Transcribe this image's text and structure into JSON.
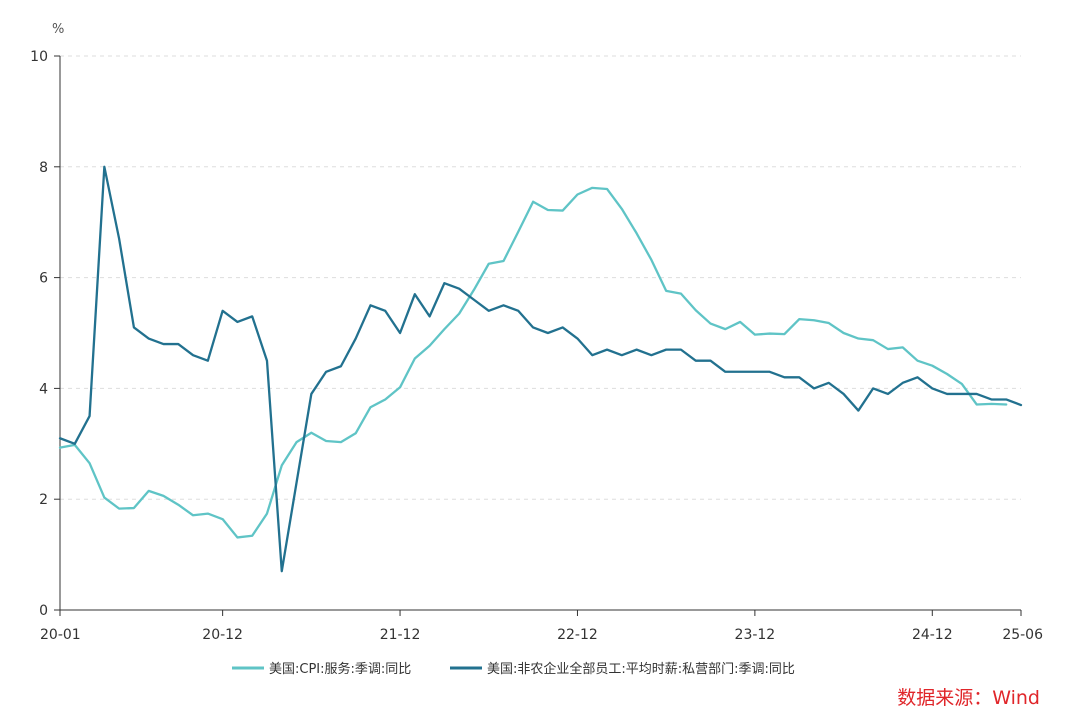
{
  "chart_data": {
    "type": "line",
    "title": "",
    "y_unit": "%",
    "xlabel": "",
    "ylabel": "",
    "ylim": [
      0,
      10
    ],
    "yticks": [
      0,
      2,
      4,
      6,
      8,
      10
    ],
    "x_tick_labels": [
      "20-01",
      "20-12",
      "21-12",
      "22-12",
      "23-12",
      "24-12",
      "25-06"
    ],
    "x_tick_index": [
      0,
      11,
      23,
      35,
      47,
      59,
      65
    ],
    "grid": "horizontal dashed",
    "legend_position": "bottom",
    "x": [
      "2020-01",
      "2020-02",
      "2020-03",
      "2020-04",
      "2020-05",
      "2020-06",
      "2020-07",
      "2020-08",
      "2020-09",
      "2020-10",
      "2020-11",
      "2020-12",
      "2021-01",
      "2021-02",
      "2021-03",
      "2021-04",
      "2021-05",
      "2021-06",
      "2021-07",
      "2021-08",
      "2021-09",
      "2021-10",
      "2021-11",
      "2021-12",
      "2022-01",
      "2022-02",
      "2022-03",
      "2022-04",
      "2022-05",
      "2022-06",
      "2022-07",
      "2022-08",
      "2022-09",
      "2022-10",
      "2022-11",
      "2022-12",
      "2023-01",
      "2023-02",
      "2023-03",
      "2023-04",
      "2023-05",
      "2023-06",
      "2023-07",
      "2023-08",
      "2023-09",
      "2023-10",
      "2023-11",
      "2023-12",
      "2024-01",
      "2024-02",
      "2024-03",
      "2024-04",
      "2024-05",
      "2024-06",
      "2024-07",
      "2024-08",
      "2024-09",
      "2024-10",
      "2024-11",
      "2024-12",
      "2025-01",
      "2025-02",
      "2025-03",
      "2025-04",
      "2025-05",
      "2025-06"
    ],
    "series": [
      {
        "name": "美国:CPI:服务:季调:同比",
        "color": "#5fc4c6",
        "values": [
          2.93,
          2.98,
          2.65,
          2.03,
          1.83,
          1.84,
          2.15,
          2.06,
          1.9,
          1.71,
          1.74,
          1.64,
          1.31,
          1.34,
          1.74,
          2.61,
          3.03,
          3.2,
          3.05,
          3.03,
          3.19,
          3.66,
          3.8,
          4.02,
          4.54,
          4.77,
          5.07,
          5.35,
          5.78,
          6.25,
          6.3,
          6.83,
          7.37,
          7.22,
          7.21,
          7.5,
          7.62,
          7.6,
          7.24,
          6.8,
          6.32,
          5.76,
          5.71,
          5.41,
          5.17,
          5.07,
          5.2,
          4.97,
          4.99,
          4.98,
          5.25,
          5.23,
          5.18,
          5.0,
          4.9,
          4.87,
          4.71,
          4.74,
          4.5,
          4.41,
          4.26,
          4.08,
          3.71,
          3.72,
          3.71,
          null
        ]
      },
      {
        "name": "美国:非农企业全部员工:平均时薪:私营部门:季调:同比",
        "color": "#22718f",
        "values": [
          3.1,
          3.0,
          3.5,
          8.0,
          6.7,
          5.1,
          4.9,
          4.8,
          4.8,
          4.6,
          4.5,
          5.4,
          5.2,
          5.3,
          4.5,
          0.7,
          2.3,
          3.9,
          4.3,
          4.4,
          4.9,
          5.5,
          5.4,
          5.0,
          5.7,
          5.3,
          5.9,
          5.8,
          5.6,
          5.4,
          5.5,
          5.4,
          5.1,
          5.0,
          5.1,
          4.9,
          4.6,
          4.7,
          4.6,
          4.7,
          4.6,
          4.7,
          4.7,
          4.5,
          4.5,
          4.3,
          4.3,
          4.3,
          4.3,
          4.2,
          4.2,
          4.0,
          4.1,
          3.9,
          3.6,
          4.0,
          3.9,
          4.1,
          4.2,
          4.0,
          3.9,
          3.9,
          3.9,
          3.8,
          3.8,
          3.7
        ]
      }
    ]
  },
  "source": {
    "label": "数据来源：Wind",
    "color": "#e0262a"
  }
}
